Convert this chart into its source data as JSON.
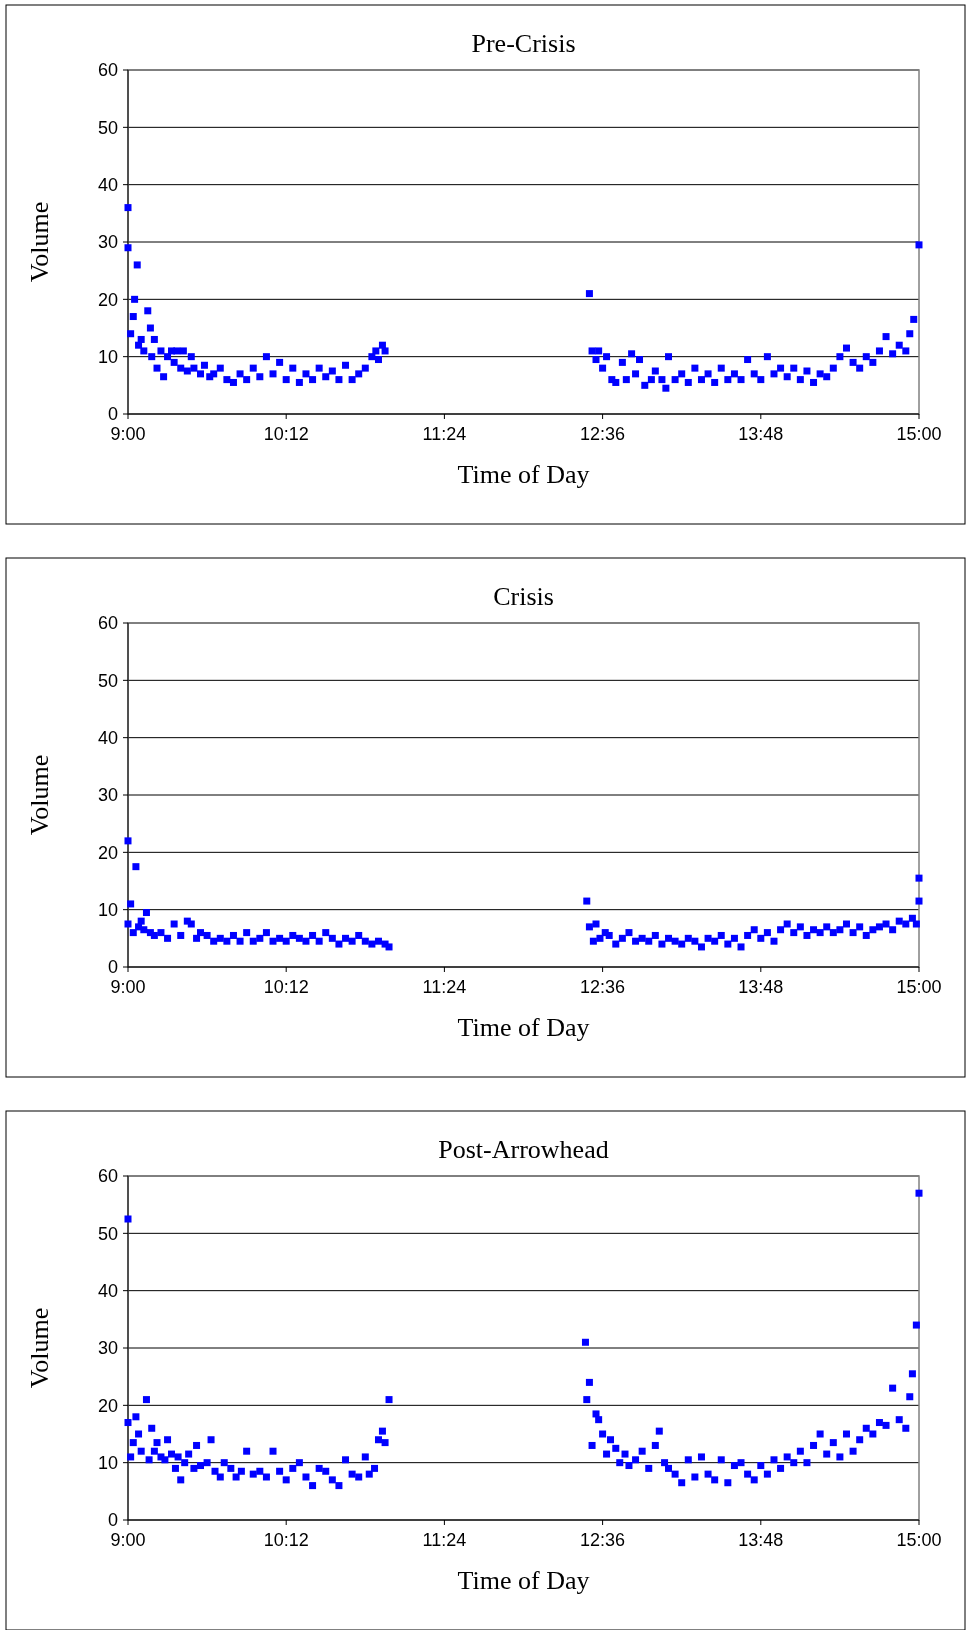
{
  "chart_data": [
    {
      "type": "scatter",
      "title": "Pre-Crisis",
      "xlabel": "Time of Day",
      "ylabel": "Volume",
      "xlim": [
        9,
        15
      ],
      "ylim": [
        0,
        60
      ],
      "xticks": [
        {
          "value": 9,
          "label": "9:00"
        },
        {
          "value": 10.2,
          "label": "10:12"
        },
        {
          "value": 11.4,
          "label": "11:24"
        },
        {
          "value": 12.6,
          "label": "12:36"
        },
        {
          "value": 13.8,
          "label": "13:48"
        },
        {
          "value": 15,
          "label": "15:00"
        }
      ],
      "yticks": [
        0,
        10,
        20,
        30,
        40,
        50,
        60
      ],
      "grid": "y",
      "marker": "square",
      "series": [
        {
          "color": "#0000ff",
          "x": [
            9.0,
            9.0,
            9.02,
            9.04,
            9.05,
            9.07,
            9.08,
            9.1,
            9.12,
            9.15,
            9.17,
            9.18,
            9.2,
            9.22,
            9.25,
            9.27,
            9.3,
            9.33,
            9.35,
            9.37,
            9.4,
            9.42,
            9.45,
            9.48,
            9.5,
            9.55,
            9.58,
            9.62,
            9.65,
            9.7,
            9.75,
            9.8,
            9.85,
            9.9,
            9.95,
            10.0,
            10.05,
            10.1,
            10.15,
            10.2,
            10.25,
            10.3,
            10.35,
            10.4,
            10.45,
            10.5,
            10.55,
            10.6,
            10.65,
            10.7,
            10.75,
            10.8,
            10.85,
            10.88,
            10.9,
            10.93,
            10.95,
            12.5,
            12.52,
            12.55,
            12.57,
            12.6,
            12.63,
            12.67,
            12.7,
            12.75,
            12.78,
            12.82,
            12.85,
            12.88,
            12.92,
            12.97,
            13.0,
            13.05,
            13.08,
            13.1,
            13.15,
            13.2,
            13.25,
            13.3,
            13.35,
            13.4,
            13.45,
            13.5,
            13.55,
            13.6,
            13.65,
            13.7,
            13.75,
            13.8,
            13.85,
            13.9,
            13.95,
            14.0,
            14.05,
            14.1,
            14.15,
            14.2,
            14.25,
            14.3,
            14.35,
            14.4,
            14.45,
            14.5,
            14.55,
            14.6,
            14.65,
            14.7,
            14.75,
            14.8,
            14.85,
            14.9,
            14.93,
            14.96,
            15.0
          ],
          "values": [
            36,
            29,
            14,
            17,
            20,
            26,
            12,
            13,
            11,
            18,
            15,
            10,
            13,
            8,
            11,
            6.5,
            10,
            11,
            9,
            11,
            8,
            11,
            7.5,
            10,
            8,
            7,
            8.5,
            6.5,
            7,
            8,
            6,
            5.5,
            7,
            6,
            8,
            6.5,
            10,
            7,
            9,
            6,
            8,
            5.5,
            7,
            6,
            8,
            6.5,
            7.5,
            6,
            8.5,
            6,
            7,
            8,
            10,
            11,
            9.5,
            12,
            11,
            21,
            11,
            9.5,
            11,
            8,
            10,
            6,
            5.5,
            9,
            6,
            10.5,
            7,
            9.5,
            5,
            6,
            7.5,
            6,
            4.5,
            10,
            6,
            7,
            5.5,
            8,
            6,
            7,
            5.5,
            8,
            6,
            7,
            6,
            9.5,
            7,
            6,
            10,
            7,
            8,
            6.5,
            8,
            6,
            7.5,
            5.5,
            7,
            6.5,
            8,
            10,
            11.5,
            9,
            8,
            10,
            9,
            11,
            13.5,
            10.5,
            12,
            11,
            14,
            16.5,
            29.5
          ]
        }
      ]
    },
    {
      "type": "scatter",
      "title": "Crisis",
      "xlabel": "Time of Day",
      "ylabel": "Volume",
      "xlim": [
        9,
        15
      ],
      "ylim": [
        0,
        60
      ],
      "xticks": [
        {
          "value": 9,
          "label": "9:00"
        },
        {
          "value": 10.2,
          "label": "10:12"
        },
        {
          "value": 11.4,
          "label": "11:24"
        },
        {
          "value": 12.6,
          "label": "12:36"
        },
        {
          "value": 13.8,
          "label": "13:48"
        },
        {
          "value": 15,
          "label": "15:00"
        }
      ],
      "yticks": [
        0,
        10,
        20,
        30,
        40,
        50,
        60
      ],
      "grid": "y",
      "marker": "square",
      "series": [
        {
          "color": "#0000ff",
          "x": [
            9.0,
            9.0,
            9.02,
            9.04,
            9.06,
            9.08,
            9.1,
            9.12,
            9.14,
            9.17,
            9.2,
            9.25,
            9.3,
            9.35,
            9.4,
            9.45,
            9.48,
            9.52,
            9.55,
            9.6,
            9.65,
            9.7,
            9.75,
            9.8,
            9.85,
            9.9,
            9.95,
            10.0,
            10.05,
            10.1,
            10.15,
            10.2,
            10.25,
            10.3,
            10.35,
            10.4,
            10.45,
            10.5,
            10.55,
            10.6,
            10.65,
            10.7,
            10.75,
            10.8,
            10.85,
            10.9,
            10.95,
            10.98,
            12.48,
            12.5,
            12.53,
            12.55,
            12.58,
            12.62,
            12.65,
            12.7,
            12.75,
            12.8,
            12.85,
            12.9,
            12.95,
            13.0,
            13.05,
            13.1,
            13.15,
            13.2,
            13.25,
            13.3,
            13.35,
            13.4,
            13.45,
            13.5,
            13.55,
            13.6,
            13.65,
            13.7,
            13.75,
            13.8,
            13.85,
            13.9,
            13.95,
            14.0,
            14.05,
            14.1,
            14.15,
            14.2,
            14.25,
            14.3,
            14.35,
            14.4,
            14.45,
            14.5,
            14.55,
            14.6,
            14.65,
            14.7,
            14.75,
            14.8,
            14.85,
            14.9,
            14.95,
            14.98,
            15.0,
            15.0
          ],
          "values": [
            22,
            7.5,
            11,
            6,
            17.5,
            7,
            8,
            6.5,
            9.5,
            6,
            5.5,
            6,
            5,
            7.5,
            5.5,
            8,
            7.5,
            5,
            6,
            5.5,
            4.5,
            5,
            4.5,
            5.5,
            4.5,
            6,
            4.5,
            5,
            6,
            4.5,
            5,
            4.5,
            5.5,
            5,
            4.5,
            5.5,
            4.5,
            6,
            5,
            4,
            5,
            4.5,
            5.5,
            4.5,
            4,
            4.5,
            4,
            3.5,
            11.5,
            7,
            4.5,
            7.5,
            5,
            6,
            5.5,
            4,
            5,
            6,
            4.5,
            5,
            4.5,
            5.5,
            4,
            5,
            4.5,
            4,
            5,
            4.5,
            3.5,
            5,
            4.5,
            5.5,
            4,
            5,
            3.5,
            5.5,
            6.5,
            5,
            6,
            4.5,
            6.5,
            7.5,
            6,
            7,
            5.5,
            6.5,
            6,
            7,
            6,
            6.5,
            7.5,
            6,
            7,
            5.5,
            6.5,
            7,
            7.5,
            6.5,
            8,
            7.5,
            8.5,
            7.5,
            11.5,
            15.5
          ]
        }
      ]
    },
    {
      "type": "scatter",
      "title": "Post-Arrowhead",
      "xlabel": "Time of Day",
      "ylabel": "Volume",
      "xlim": [
        9,
        15
      ],
      "ylim": [
        0,
        60
      ],
      "xticks": [
        {
          "value": 9,
          "label": "9:00"
        },
        {
          "value": 10.2,
          "label": "10:12"
        },
        {
          "value": 11.4,
          "label": "11:24"
        },
        {
          "value": 12.6,
          "label": "12:36"
        },
        {
          "value": 13.8,
          "label": "13:48"
        },
        {
          "value": 15,
          "label": "15:00"
        }
      ],
      "yticks": [
        0,
        10,
        20,
        30,
        40,
        50,
        60
      ],
      "grid": "y",
      "marker": "square",
      "series": [
        {
          "color": "#0000ff",
          "x": [
            9.0,
            9.0,
            9.02,
            9.04,
            9.06,
            9.08,
            9.1,
            9.14,
            9.16,
            9.18,
            9.2,
            9.22,
            9.25,
            9.28,
            9.3,
            9.33,
            9.36,
            9.38,
            9.4,
            9.43,
            9.46,
            9.5,
            9.52,
            9.55,
            9.6,
            9.63,
            9.66,
            9.7,
            9.73,
            9.78,
            9.82,
            9.86,
            9.9,
            9.95,
            10.0,
            10.05,
            10.1,
            10.15,
            10.2,
            10.25,
            10.3,
            10.35,
            10.4,
            10.45,
            10.5,
            10.55,
            10.6,
            10.65,
            10.7,
            10.75,
            10.8,
            10.83,
            10.87,
            10.9,
            10.93,
            10.95,
            10.98,
            12.47,
            12.48,
            12.5,
            12.52,
            12.55,
            12.57,
            12.6,
            12.63,
            12.66,
            12.7,
            12.73,
            12.77,
            12.8,
            12.85,
            12.9,
            12.95,
            13.0,
            13.03,
            13.07,
            13.1,
            13.15,
            13.2,
            13.25,
            13.3,
            13.35,
            13.4,
            13.45,
            13.5,
            13.55,
            13.6,
            13.65,
            13.7,
            13.75,
            13.8,
            13.85,
            13.9,
            13.95,
            14.0,
            14.05,
            14.1,
            14.15,
            14.2,
            14.25,
            14.3,
            14.35,
            14.4,
            14.45,
            14.5,
            14.55,
            14.6,
            14.65,
            14.7,
            14.75,
            14.8,
            14.85,
            14.9,
            14.93,
            14.95,
            14.98,
            15.0
          ],
          "values": [
            52.5,
            17,
            11,
            13.5,
            18,
            15,
            12,
            21,
            10.5,
            16,
            12,
            13.5,
            11,
            10.5,
            14,
            11.5,
            9,
            11,
            7,
            10,
            11.5,
            9,
            13,
            9.5,
            10,
            14,
            8.5,
            7.5,
            10,
            9,
            7.5,
            8.5,
            12,
            8,
            8.5,
            7.5,
            12,
            8.5,
            7,
            9,
            10,
            7.5,
            6,
            9,
            8.5,
            7,
            6,
            10.5,
            8,
            7.5,
            11,
            8,
            9,
            14,
            15.5,
            13.5,
            21,
            31,
            21,
            24,
            13,
            18.5,
            17.5,
            15,
            11.5,
            14,
            12.5,
            10,
            11.5,
            9.5,
            10.5,
            12,
            9,
            13,
            15.5,
            10,
            9,
            8,
            6.5,
            10.5,
            7.5,
            11,
            8,
            7,
            10.5,
            6.5,
            9.5,
            10,
            8,
            7,
            9.5,
            8,
            10.5,
            9,
            11,
            10,
            12,
            10,
            13,
            15,
            11.5,
            13.5,
            11,
            15,
            12,
            14,
            16,
            15,
            17,
            16.5,
            23,
            17.5,
            16,
            21.5,
            25.5,
            34,
            57
          ]
        }
      ]
    }
  ]
}
